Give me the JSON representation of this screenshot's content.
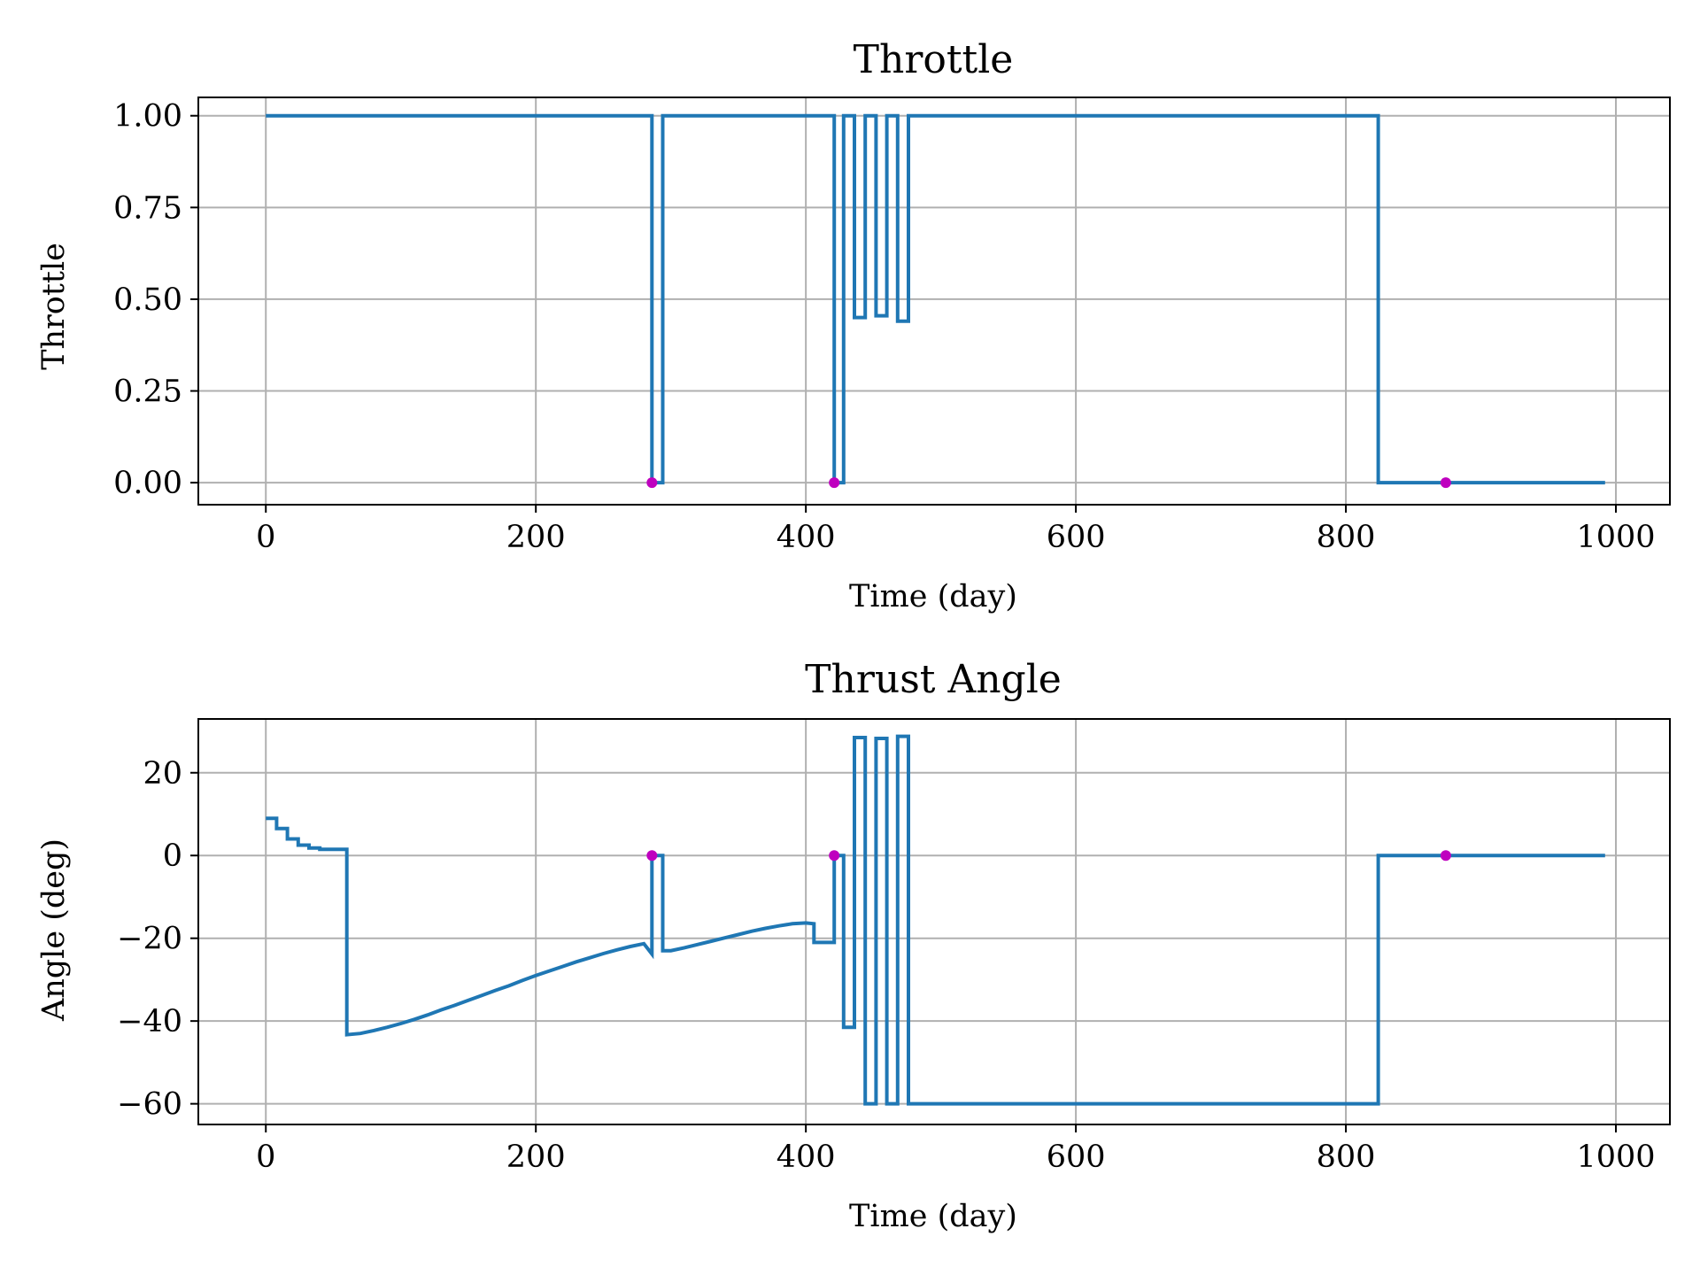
{
  "chart_data": [
    {
      "type": "line",
      "title": "Throttle",
      "xlabel": "Time (day)",
      "ylabel": "Throttle",
      "xlim": [
        -50,
        1040
      ],
      "ylim": [
        -0.06,
        1.05
      ],
      "xticks": [
        0,
        200,
        400,
        600,
        800,
        1000
      ],
      "xtick_labels": [
        "0",
        "200",
        "400",
        "600",
        "800",
        "1000"
      ],
      "yticks": [
        0,
        0.25,
        0.5,
        0.75,
        1.0
      ],
      "ytick_labels": [
        "0.00",
        "0.25",
        "0.50",
        "0.75",
        "1.00"
      ],
      "grid": true,
      "series_color": "#1f77b4",
      "marker_color": "#bf00bf",
      "series": [
        {
          "name": "",
          "x": [
            0,
            286,
            286,
            294,
            294,
            421,
            421,
            428,
            428,
            436,
            436,
            444,
            444,
            452,
            452,
            460,
            460,
            468,
            468,
            476,
            476,
            824,
            824,
            992
          ],
          "y": [
            1,
            1,
            0,
            0,
            1,
            1,
            0,
            0,
            1,
            1,
            0.45,
            0.45,
            1,
            1,
            0.455,
            0.455,
            1,
            1,
            0.44,
            0.44,
            1,
            1,
            0,
            0
          ]
        }
      ],
      "markers": [
        {
          "x": 286,
          "y": 0
        },
        {
          "x": 421,
          "y": 0
        },
        {
          "x": 874,
          "y": 0
        }
      ]
    },
    {
      "type": "line",
      "title": "Thrust Angle",
      "xlabel": "Time (day)",
      "ylabel": "Angle (deg)",
      "xlim": [
        -50,
        1040
      ],
      "ylim": [
        -65,
        33
      ],
      "xticks": [
        0,
        200,
        400,
        600,
        800,
        1000
      ],
      "xtick_labels": [
        "0",
        "200",
        "400",
        "600",
        "800",
        "1000"
      ],
      "yticks": [
        20,
        0,
        -20,
        -40,
        -60
      ],
      "ytick_labels": [
        "20",
        "0",
        "−20",
        "−40",
        "−60"
      ],
      "grid": true,
      "series_color": "#1f77b4",
      "marker_color": "#bf00bf",
      "series": [
        {
          "name": "",
          "x": [
            0,
            8,
            8,
            16,
            16,
            24,
            24,
            32,
            32,
            40,
            40,
            48,
            48,
            60,
            60,
            70,
            80,
            90,
            100,
            110,
            120,
            130,
            140,
            150,
            160,
            170,
            180,
            190,
            200,
            210,
            220,
            230,
            240,
            250,
            260,
            270,
            280,
            286,
            286,
            294,
            294,
            300,
            310,
            320,
            330,
            340,
            350,
            360,
            370,
            380,
            390,
            400,
            406,
            406,
            421,
            421,
            428,
            428,
            436,
            436,
            444,
            444,
            452,
            452,
            460,
            460,
            468,
            468,
            476,
            476,
            824,
            824,
            992
          ],
          "y": [
            9,
            9,
            6.5,
            6.5,
            4,
            4,
            2.5,
            2.5,
            1.8,
            1.8,
            1.5,
            1.5,
            1.5,
            1.5,
            -43.3,
            -43.0,
            -42.3,
            -41.5,
            -40.6,
            -39.6,
            -38.5,
            -37.3,
            -36.2,
            -35.0,
            -33.8,
            -32.6,
            -31.5,
            -30.2,
            -29.0,
            -27.9,
            -26.8,
            -25.7,
            -24.7,
            -23.7,
            -22.8,
            -22.0,
            -21.3,
            -23.8,
            0,
            0,
            -23,
            -23,
            -22.3,
            -21.5,
            -20.7,
            -19.9,
            -19.1,
            -18.3,
            -17.6,
            -17.0,
            -16.5,
            -16.3,
            -16.5,
            -21,
            -21,
            0,
            0,
            -41.5,
            -41.5,
            28.5,
            28.5,
            -60,
            -60,
            28.3,
            28.3,
            -60,
            -60,
            28.8,
            28.8,
            -60,
            -60,
            0,
            0
          ]
        }
      ],
      "markers": [
        {
          "x": 286,
          "y": 0
        },
        {
          "x": 421,
          "y": 0
        },
        {
          "x": 874,
          "y": 0
        }
      ]
    }
  ]
}
